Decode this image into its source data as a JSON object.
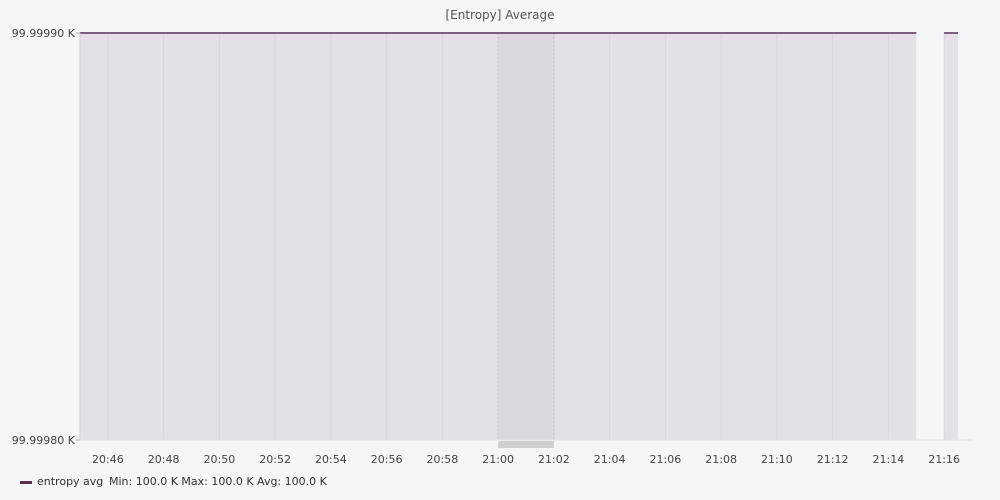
{
  "chart_data": {
    "type": "area",
    "title": "[Entropy] Average",
    "xlabel": "",
    "ylabel": "",
    "x_ticks": [
      "20:46",
      "20:48",
      "20:50",
      "20:52",
      "20:54",
      "20:56",
      "20:58",
      "21:00",
      "21:02",
      "21:04",
      "21:06",
      "21:08",
      "21:10",
      "21:12",
      "21:14",
      "21:16"
    ],
    "y_ticks": [
      "99.99990 K",
      "99.99980 K"
    ],
    "xlim": [
      "20:45",
      "21:17"
    ],
    "ylim": [
      99.9998,
      99.9999
    ],
    "series": [
      {
        "name": "entropy avg",
        "color": "#5c2e4e",
        "segments": [
          {
            "x": [
              "20:45",
              "21:15"
            ],
            "y": [
              99.9999,
              99.9999
            ]
          },
          {
            "x": [
              "21:16",
              "21:16.5"
            ],
            "y": [
              99.9999,
              99.9999
            ]
          }
        ]
      }
    ],
    "highlight": {
      "x": [
        "21:00",
        "21:02"
      ]
    },
    "grid": true,
    "legend_position": "bottom-left"
  },
  "legend": {
    "entries": [
      {
        "name": "entropy avg",
        "color": "#5c2e4e",
        "stats": "Min: 100.0 K  Max: 100.0 K  Avg: 100.0 K"
      }
    ]
  },
  "colors": {
    "area_fill": "#e5e0e8",
    "line": "#7d5c80",
    "grid": "#d6cfd9",
    "highlight": "#dcd6df",
    "background": "#f5f6fa"
  }
}
